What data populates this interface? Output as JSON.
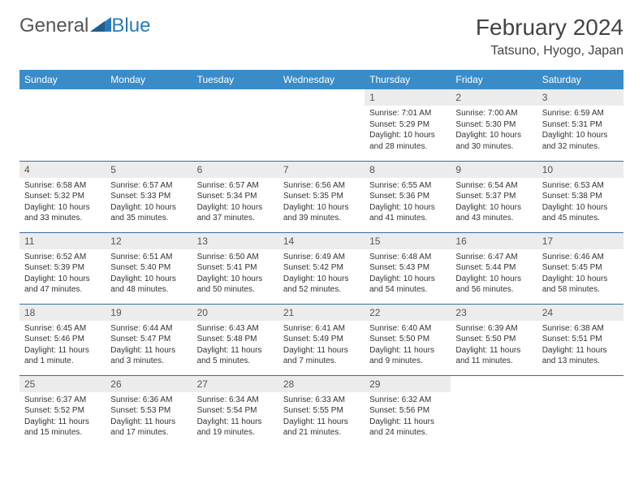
{
  "logo": {
    "text1": "General",
    "text2": "Blue"
  },
  "title": "February 2024",
  "location": "Tatsuno, Hyogo, Japan",
  "colors": {
    "header_bg": "#3a8cc9",
    "header_text": "#ffffff",
    "daynum_bg": "#ececec",
    "border": "#3a6c9c",
    "logo_blue": "#2a7ab9"
  },
  "weekdays": [
    "Sunday",
    "Monday",
    "Tuesday",
    "Wednesday",
    "Thursday",
    "Friday",
    "Saturday"
  ],
  "weeks": [
    [
      null,
      null,
      null,
      null,
      {
        "n": "1",
        "sunrise": "7:01 AM",
        "sunset": "5:29 PM",
        "daylight": "10 hours and 28 minutes."
      },
      {
        "n": "2",
        "sunrise": "7:00 AM",
        "sunset": "5:30 PM",
        "daylight": "10 hours and 30 minutes."
      },
      {
        "n": "3",
        "sunrise": "6:59 AM",
        "sunset": "5:31 PM",
        "daylight": "10 hours and 32 minutes."
      }
    ],
    [
      {
        "n": "4",
        "sunrise": "6:58 AM",
        "sunset": "5:32 PM",
        "daylight": "10 hours and 33 minutes."
      },
      {
        "n": "5",
        "sunrise": "6:57 AM",
        "sunset": "5:33 PM",
        "daylight": "10 hours and 35 minutes."
      },
      {
        "n": "6",
        "sunrise": "6:57 AM",
        "sunset": "5:34 PM",
        "daylight": "10 hours and 37 minutes."
      },
      {
        "n": "7",
        "sunrise": "6:56 AM",
        "sunset": "5:35 PM",
        "daylight": "10 hours and 39 minutes."
      },
      {
        "n": "8",
        "sunrise": "6:55 AM",
        "sunset": "5:36 PM",
        "daylight": "10 hours and 41 minutes."
      },
      {
        "n": "9",
        "sunrise": "6:54 AM",
        "sunset": "5:37 PM",
        "daylight": "10 hours and 43 minutes."
      },
      {
        "n": "10",
        "sunrise": "6:53 AM",
        "sunset": "5:38 PM",
        "daylight": "10 hours and 45 minutes."
      }
    ],
    [
      {
        "n": "11",
        "sunrise": "6:52 AM",
        "sunset": "5:39 PM",
        "daylight": "10 hours and 47 minutes."
      },
      {
        "n": "12",
        "sunrise": "6:51 AM",
        "sunset": "5:40 PM",
        "daylight": "10 hours and 48 minutes."
      },
      {
        "n": "13",
        "sunrise": "6:50 AM",
        "sunset": "5:41 PM",
        "daylight": "10 hours and 50 minutes."
      },
      {
        "n": "14",
        "sunrise": "6:49 AM",
        "sunset": "5:42 PM",
        "daylight": "10 hours and 52 minutes."
      },
      {
        "n": "15",
        "sunrise": "6:48 AM",
        "sunset": "5:43 PM",
        "daylight": "10 hours and 54 minutes."
      },
      {
        "n": "16",
        "sunrise": "6:47 AM",
        "sunset": "5:44 PM",
        "daylight": "10 hours and 56 minutes."
      },
      {
        "n": "17",
        "sunrise": "6:46 AM",
        "sunset": "5:45 PM",
        "daylight": "10 hours and 58 minutes."
      }
    ],
    [
      {
        "n": "18",
        "sunrise": "6:45 AM",
        "sunset": "5:46 PM",
        "daylight": "11 hours and 1 minute."
      },
      {
        "n": "19",
        "sunrise": "6:44 AM",
        "sunset": "5:47 PM",
        "daylight": "11 hours and 3 minutes."
      },
      {
        "n": "20",
        "sunrise": "6:43 AM",
        "sunset": "5:48 PM",
        "daylight": "11 hours and 5 minutes."
      },
      {
        "n": "21",
        "sunrise": "6:41 AM",
        "sunset": "5:49 PM",
        "daylight": "11 hours and 7 minutes."
      },
      {
        "n": "22",
        "sunrise": "6:40 AM",
        "sunset": "5:50 PM",
        "daylight": "11 hours and 9 minutes."
      },
      {
        "n": "23",
        "sunrise": "6:39 AM",
        "sunset": "5:50 PM",
        "daylight": "11 hours and 11 minutes."
      },
      {
        "n": "24",
        "sunrise": "6:38 AM",
        "sunset": "5:51 PM",
        "daylight": "11 hours and 13 minutes."
      }
    ],
    [
      {
        "n": "25",
        "sunrise": "6:37 AM",
        "sunset": "5:52 PM",
        "daylight": "11 hours and 15 minutes."
      },
      {
        "n": "26",
        "sunrise": "6:36 AM",
        "sunset": "5:53 PM",
        "daylight": "11 hours and 17 minutes."
      },
      {
        "n": "27",
        "sunrise": "6:34 AM",
        "sunset": "5:54 PM",
        "daylight": "11 hours and 19 minutes."
      },
      {
        "n": "28",
        "sunrise": "6:33 AM",
        "sunset": "5:55 PM",
        "daylight": "11 hours and 21 minutes."
      },
      {
        "n": "29",
        "sunrise": "6:32 AM",
        "sunset": "5:56 PM",
        "daylight": "11 hours and 24 minutes."
      },
      null,
      null
    ]
  ],
  "labels": {
    "sunrise": "Sunrise: ",
    "sunset": "Sunset: ",
    "daylight": "Daylight: "
  }
}
